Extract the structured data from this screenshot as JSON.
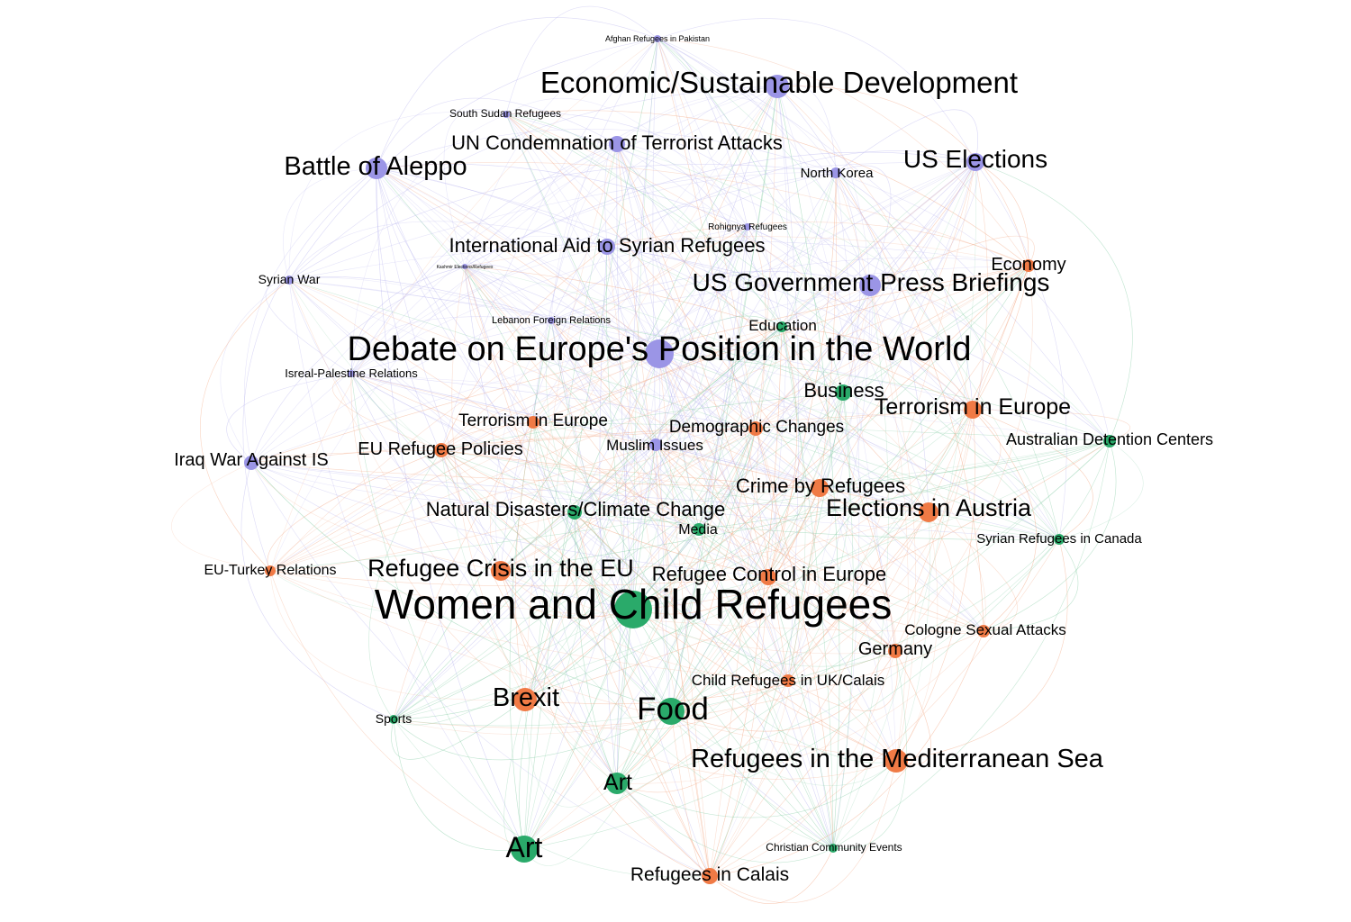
{
  "colors": {
    "purple": "#9b95e6",
    "orange": "#f07a45",
    "green": "#2aaa6a",
    "edge_purple": "#b7b3ee",
    "edge_orange": "#f2a27c",
    "edge_green": "#7fcaa0"
  },
  "nodes": [
    {
      "id": "afghan",
      "label": "Afghan Refugees in Pakistan",
      "group": "purple"
    },
    {
      "id": "econ",
      "label": "Economic/Sustainable Development",
      "group": "purple"
    },
    {
      "id": "southsudan",
      "label": "South Sudan Refugees",
      "group": "purple"
    },
    {
      "id": "uncond",
      "label": "UN Condemnation of Terrorist Attacks",
      "group": "purple"
    },
    {
      "id": "aleppo",
      "label": "Battle of Aleppo",
      "group": "purple"
    },
    {
      "id": "nkorea",
      "label": "North Korea",
      "group": "purple"
    },
    {
      "id": "uselect",
      "label": "US Elections",
      "group": "purple"
    },
    {
      "id": "rohingya",
      "label": "Rohignya Refugees",
      "group": "purple"
    },
    {
      "id": "intlaid",
      "label": "International Aid to Syrian Refugees",
      "group": "purple"
    },
    {
      "id": "economy",
      "label": "Economy",
      "group": "orange"
    },
    {
      "id": "syrianwar",
      "label": "Syrian War",
      "group": "purple"
    },
    {
      "id": "kashmir",
      "label": "Kashmir Elections/Refugees",
      "group": "purple"
    },
    {
      "id": "usgov",
      "label": "US Government Press Briefings",
      "group": "purple"
    },
    {
      "id": "lebanon",
      "label": "Lebanon Foreign Relations",
      "group": "purple"
    },
    {
      "id": "education",
      "label": "Education",
      "group": "green"
    },
    {
      "id": "debate",
      "label": "Debate on Europe's Position in the World",
      "group": "purple"
    },
    {
      "id": "isreal",
      "label": "Isreal-Palestine Relations",
      "group": "purple"
    },
    {
      "id": "business",
      "label": "Business",
      "group": "green"
    },
    {
      "id": "terrorR",
      "label": "Terrorism in Europe",
      "group": "orange"
    },
    {
      "id": "terrorL",
      "label": "Terrorism in Europe",
      "group": "orange"
    },
    {
      "id": "demog",
      "label": "Demographic Changes",
      "group": "orange"
    },
    {
      "id": "australia",
      "label": "Australian Detention Centers",
      "group": "green"
    },
    {
      "id": "euref",
      "label": "EU Refugee Policies",
      "group": "orange"
    },
    {
      "id": "muslim",
      "label": "Muslim Issues",
      "group": "purple"
    },
    {
      "id": "iraq",
      "label": "Iraq War Against IS",
      "group": "purple"
    },
    {
      "id": "crime",
      "label": "Crime by Refugees",
      "group": "orange"
    },
    {
      "id": "natural",
      "label": "Natural Disasters/Climate Change",
      "group": "green"
    },
    {
      "id": "austria",
      "label": "Elections in Austria",
      "group": "orange"
    },
    {
      "id": "media",
      "label": "Media",
      "group": "green"
    },
    {
      "id": "canada",
      "label": "Syrian Refugees in Canada",
      "group": "green"
    },
    {
      "id": "euturkey",
      "label": "EU-Turkey Relations",
      "group": "orange"
    },
    {
      "id": "crisis",
      "label": "Refugee Crisis in the EU",
      "group": "orange"
    },
    {
      "id": "control",
      "label": "Refugee Control in Europe",
      "group": "orange"
    },
    {
      "id": "women",
      "label": "Women and Child Refugees",
      "group": "green"
    },
    {
      "id": "cologne",
      "label": "Cologne Sexual Attacks",
      "group": "orange"
    },
    {
      "id": "germany",
      "label": "Germany",
      "group": "orange"
    },
    {
      "id": "childuk",
      "label": "Child Refugees in UK/Calais",
      "group": "orange"
    },
    {
      "id": "brexit",
      "label": "Brexit",
      "group": "orange"
    },
    {
      "id": "sports",
      "label": "Sports",
      "group": "green"
    },
    {
      "id": "food",
      "label": "Food",
      "group": "green"
    },
    {
      "id": "med",
      "label": "Refugees in the Mediterranean Sea",
      "group": "orange"
    },
    {
      "id": "art1",
      "label": "Art",
      "group": "green"
    },
    {
      "id": "christian",
      "label": "Christian Community Events",
      "group": "green"
    },
    {
      "id": "art2",
      "label": "Art",
      "group": "green"
    },
    {
      "id": "calais",
      "label": "Refugees in Calais",
      "group": "orange"
    }
  ]
}
